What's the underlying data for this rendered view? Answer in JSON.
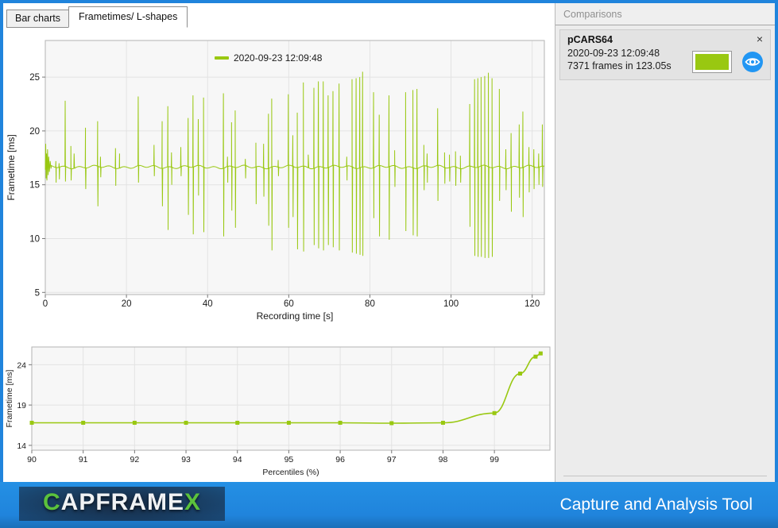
{
  "tabs": [
    {
      "label": "Bar charts",
      "active": false
    },
    {
      "label": "Frametimes/ L-shapes",
      "active": true
    }
  ],
  "comparisons": {
    "header": "Comparisons",
    "cards": [
      {
        "title": "pCARS64",
        "datetime": "2020-09-23 12:09:48",
        "frames_info": "7371 frames in 123.05s",
        "swatch_color": "#99c811",
        "close_glyph": "×"
      }
    ]
  },
  "footer": {
    "logo_c": "C",
    "logo_mid": "APFRAME",
    "logo_x": "X",
    "tagline": "Capture and Analysis Tool"
  },
  "colors": {
    "series_green": "#99c811",
    "frame_blue": "#2084dc",
    "eye_blue": "#2196f3",
    "plot_bg": "#f7f7f7",
    "grid": "#e3e3e3",
    "plot_border": "#b3b3b3"
  },
  "chart_data": [
    {
      "type": "line",
      "title": "",
      "legend": [
        {
          "label": "2020-09-23 12:09:48",
          "color": "#99c811"
        }
      ],
      "xlabel": "Recording time [s]",
      "ylabel": "Frametime [ms]",
      "xticks": [
        0,
        20,
        40,
        60,
        80,
        100,
        120
      ],
      "yticks": [
        5,
        10,
        15,
        20,
        25
      ],
      "xlim": [
        0,
        123
      ],
      "ylim": [
        4.8,
        28.4
      ],
      "grid": true,
      "legend_position": "top-center-inside",
      "baseline_ms": 16.65,
      "lead_in": [
        [
          0,
          16.4
        ],
        [
          0.1,
          18.8
        ],
        [
          0.2,
          15.6
        ],
        [
          0.3,
          17.9
        ],
        [
          0.4,
          15.4
        ],
        [
          0.55,
          18.3
        ],
        [
          0.7,
          15.9
        ],
        [
          0.85,
          17.6
        ],
        [
          1.0,
          16.2
        ],
        [
          1.2,
          17.2
        ],
        [
          1.4,
          16.5
        ]
      ],
      "spikes": [
        [
          2.6,
          17.2,
          15.2
        ],
        [
          3.4,
          17.0,
          15.5
        ],
        [
          4.9,
          22.8,
          15.3
        ],
        [
          6.3,
          18.6,
          15.4
        ],
        [
          7.1,
          17.9,
          null
        ],
        [
          9.9,
          20.3,
          14.6
        ],
        [
          12.9,
          20.9,
          13.0
        ],
        [
          13.6,
          17.6,
          15.7
        ],
        [
          17.3,
          18.4,
          14.9
        ],
        [
          18.3,
          17.9,
          null
        ],
        [
          22.9,
          23.2,
          15.2
        ],
        [
          26.8,
          18.7,
          15.8
        ],
        [
          28.8,
          20.9,
          13.0
        ],
        [
          30.2,
          22.3,
          10.8
        ],
        [
          31.1,
          18.0,
          15.0
        ],
        [
          33.4,
          18.5,
          15.8
        ],
        [
          35.2,
          21.2,
          12.2
        ],
        [
          36.4,
          23.3,
          10.4
        ],
        [
          37.7,
          21.1,
          14.0
        ],
        [
          39.0,
          23.1,
          10.6
        ],
        [
          43.9,
          23.5,
          10.2
        ],
        [
          44.9,
          17.6,
          15.2
        ],
        [
          45.9,
          20.8,
          12.6
        ],
        [
          46.8,
          21.9,
          11.0
        ],
        [
          49.3,
          17.4,
          15.6
        ],
        [
          51.9,
          18.9,
          13.2
        ],
        [
          53.8,
          18.8,
          13.9
        ],
        [
          55.0,
          21.6,
          11.2
        ],
        [
          55.8,
          23.0,
          8.9
        ],
        [
          57.4,
          17.3,
          15.8
        ],
        [
          59.9,
          23.4,
          11.0
        ],
        [
          61.0,
          19.6,
          12.0
        ],
        [
          62.1,
          21.7,
          9.0
        ],
        [
          63.6,
          24.5,
          8.8
        ],
        [
          64.8,
          17.8,
          null
        ],
        [
          66.2,
          24.0,
          9.4
        ],
        [
          67.3,
          24.6,
          9.1
        ],
        [
          68.5,
          24.6,
          8.9
        ],
        [
          69.7,
          23.3,
          9.4
        ],
        [
          70.9,
          23.7,
          9.2
        ],
        [
          72.4,
          24.4,
          8.9
        ],
        [
          74.3,
          17.6,
          15.4
        ],
        [
          75.6,
          24.8,
          8.7
        ],
        [
          76.6,
          24.9,
          8.6
        ],
        [
          77.5,
          25.0,
          8.5
        ],
        [
          78.2,
          25.5,
          8.4
        ],
        [
          80.9,
          23.6,
          11.9
        ],
        [
          82.3,
          21.5,
          10.2
        ],
        [
          84.7,
          23.3,
          9.9
        ],
        [
          86.1,
          18.2,
          14.8
        ],
        [
          88.8,
          23.6,
          10.7
        ],
        [
          90.6,
          23.8,
          10.3
        ],
        [
          91.6,
          23.9,
          10.2
        ],
        [
          93.3,
          18.7,
          14.5
        ],
        [
          94.1,
          17.9,
          15.2
        ],
        [
          96.7,
          22.1,
          13.5
        ],
        [
          98.4,
          18.0,
          15.1
        ],
        [
          99.6,
          17.8,
          15.3
        ],
        [
          101.1,
          18.1,
          14.9
        ],
        [
          102.3,
          17.7,
          15.2
        ],
        [
          104.6,
          22.5,
          11.1
        ],
        [
          105.8,
          24.8,
          8.4
        ],
        [
          106.6,
          24.9,
          8.3
        ],
        [
          107.4,
          25.0,
          8.3
        ],
        [
          108.3,
          25.1,
          8.2
        ],
        [
          109.2,
          25.4,
          8.2
        ],
        [
          110.1,
          24.9,
          8.3
        ],
        [
          111.9,
          23.9,
          13.5
        ],
        [
          113.5,
          18.3,
          14.5
        ],
        [
          114.8,
          19.8,
          12.5
        ],
        [
          116.8,
          20.6,
          13.8
        ],
        [
          117.7,
          21.8,
          12.0
        ],
        [
          119.2,
          18.5,
          14.3
        ],
        [
          120.4,
          18.3,
          14.6
        ],
        [
          121.6,
          17.9,
          15.0
        ],
        [
          122.5,
          20.6,
          14.8
        ]
      ]
    },
    {
      "type": "line",
      "title": "",
      "xlabel": "Percentiles (%)",
      "ylabel": "Frametime [ms]",
      "xticks": [
        90,
        91,
        92,
        93,
        94,
        95,
        96,
        97,
        98,
        99
      ],
      "yticks": [
        14,
        19,
        24
      ],
      "xlim": [
        90,
        100.08
      ],
      "ylim": [
        13.4,
        26.2
      ],
      "grid": true,
      "x": [
        90,
        91,
        92,
        93,
        94,
        95,
        96,
        97,
        98,
        99,
        99.5,
        99.8,
        99.9
      ],
      "y": [
        16.8,
        16.8,
        16.8,
        16.8,
        16.8,
        16.8,
        16.8,
        16.75,
        16.8,
        18.0,
        22.9,
        25.0,
        25.4
      ]
    }
  ]
}
